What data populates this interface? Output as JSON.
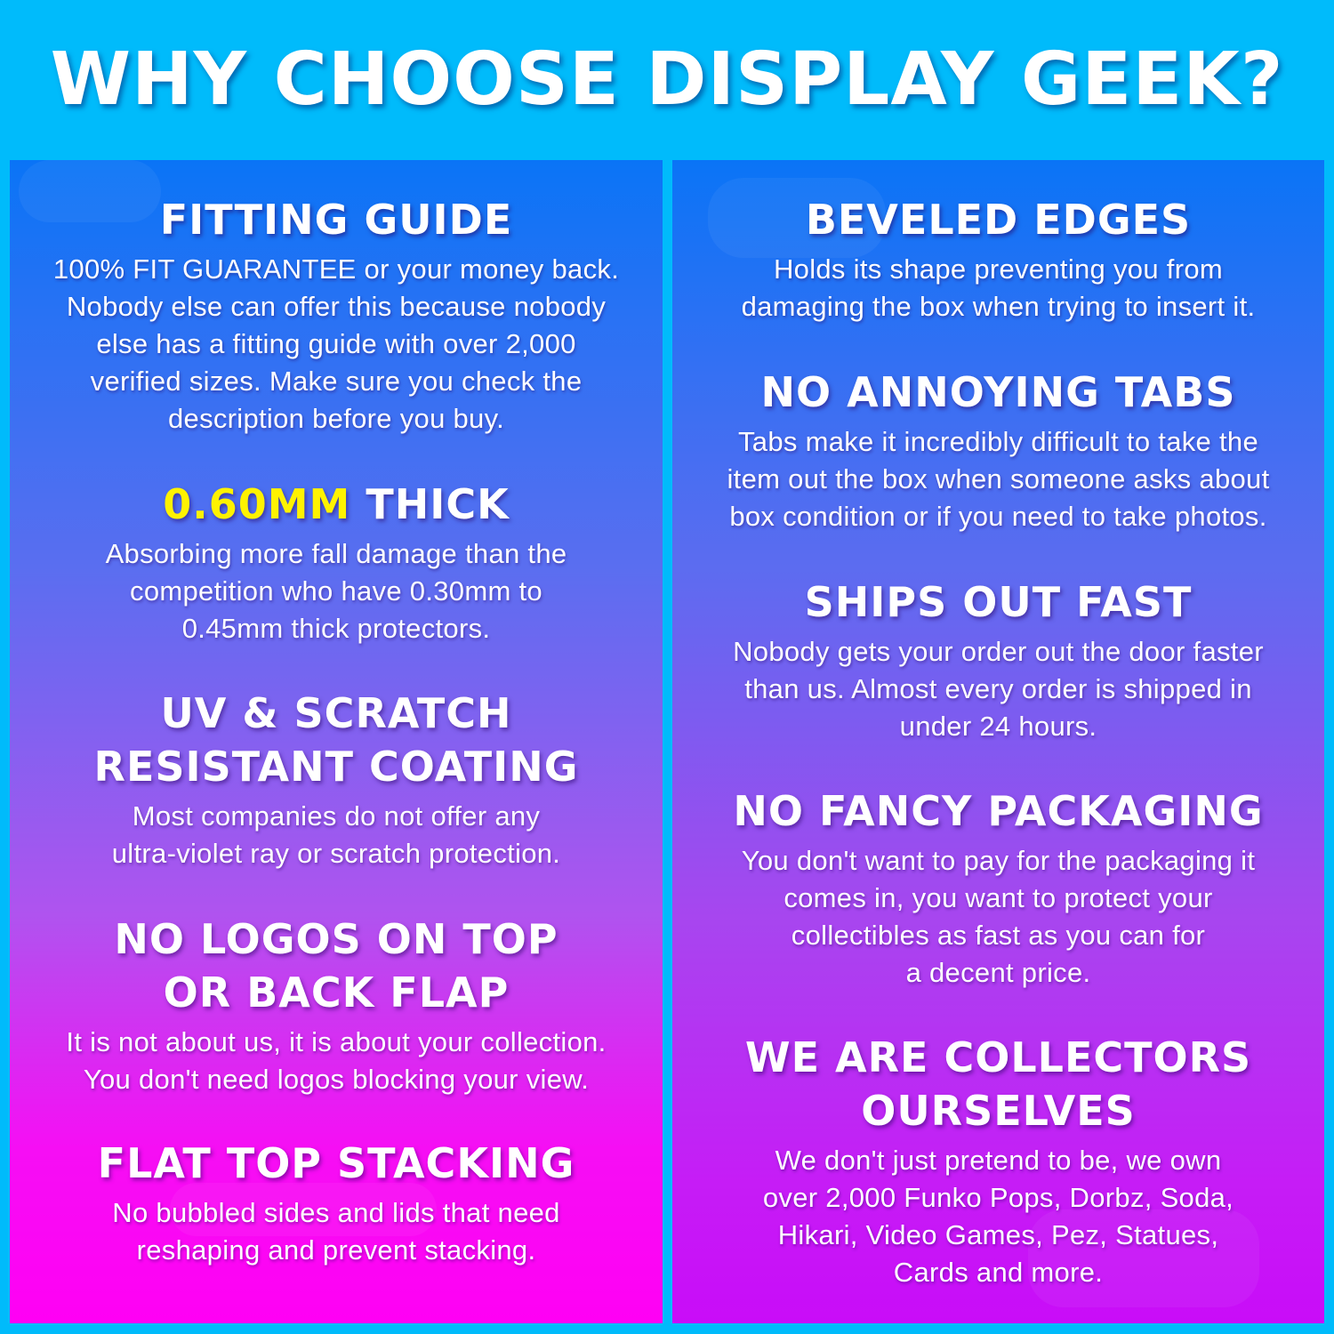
{
  "title": "WHY CHOOSE DISPLAY GEEK?",
  "colors": {
    "background": "#00bbfb",
    "highlight": "#fff200",
    "gradient_top": "#0a74f6",
    "gradient_bottom_left": "#ff00f4",
    "gradient_bottom_right": "#c90cf8"
  },
  "left": [
    {
      "heading": "FITTING GUIDE",
      "lines": [
        "100% FIT GUARANTEE or your money back.",
        "Nobody else can offer this because nobody",
        "else has a fitting guide with over 2,000",
        "verified sizes. Make sure you check the",
        "description before you buy."
      ]
    },
    {
      "heading_highlight": "0.60MM",
      "heading": "THICK",
      "lines": [
        "Absorbing more fall damage than the",
        "competition who have 0.30mm to",
        "0.45mm thick protectors."
      ]
    },
    {
      "heading_lines": [
        "UV & SCRATCH",
        "RESISTANT COATING"
      ],
      "lines": [
        "Most companies do not offer any",
        "ultra-violet ray or scratch protection."
      ]
    },
    {
      "heading_lines": [
        "NO LOGOS ON TOP",
        "OR BACK FLAP"
      ],
      "lines": [
        "It is not about us, it is about your collection.",
        "You don't need logos blocking your view."
      ]
    },
    {
      "heading": "FLAT TOP STACKING",
      "lines": [
        "No bubbled sides and lids that need",
        "reshaping and prevent stacking."
      ]
    }
  ],
  "right": [
    {
      "heading": "BEVELED EDGES",
      "lines": [
        "Holds its shape preventing you from",
        "damaging the box when trying to insert it."
      ]
    },
    {
      "heading": "NO ANNOYING TABS",
      "lines": [
        "Tabs make it incredibly difficult to take the",
        "item out the box when someone asks about",
        "box condition or if you need to take photos."
      ]
    },
    {
      "heading": "SHIPS OUT FAST",
      "lines": [
        "Nobody gets your order out the door faster",
        "than us. Almost every order is shipped in",
        "under 24 hours."
      ]
    },
    {
      "heading": "NO FANCY PACKAGING",
      "lines": [
        "You don't want to pay for the packaging it",
        "comes in, you want to protect your",
        "collectibles as fast as you can for",
        "a decent price."
      ]
    },
    {
      "heading_lines": [
        "WE ARE COLLECTORS",
        "OURSELVES"
      ],
      "lines": [
        "We don't just pretend to be, we own",
        "over 2,000 Funko Pops, Dorbz, Soda,",
        "Hikari, Video Games, Pez, Statues,",
        "Cards and more."
      ]
    }
  ]
}
